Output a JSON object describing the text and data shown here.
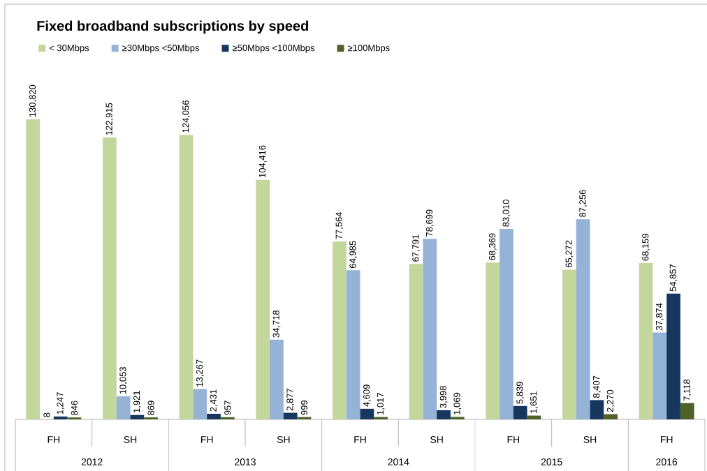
{
  "chart_data": {
    "type": "bar",
    "title": "Fixed broadband subscriptions by speed",
    "categories": [
      "FH",
      "SH",
      "FH",
      "SH",
      "FH",
      "SH",
      "FH",
      "SH",
      "FH"
    ],
    "series": [
      {
        "name": "< 30Mbps",
        "color": "#c3d69b",
        "values": [
          130820,
          122915,
          124056,
          104416,
          77564,
          67791,
          68369,
          65272,
          68159
        ],
        "value_labels": [
          "130,820",
          "122,915",
          "124,056",
          "104,416",
          "77,564",
          "67,791",
          "68,369",
          "65,272",
          "68,159"
        ]
      },
      {
        "name": "≥30Mbps <50Mbps",
        "color": "#95b3d7",
        "values": [
          8,
          10053,
          13267,
          34718,
          64985,
          78699,
          83010,
          87256,
          37874
        ],
        "value_labels": [
          "8",
          "10,053",
          "13,267",
          "34,718",
          "64,985",
          "78,699",
          "83,010",
          "87,256",
          "37,874"
        ]
      },
      {
        "name": "≥50Mbps <100Mbps",
        "color": "#17375e",
        "values": [
          1247,
          1921,
          2431,
          2877,
          4609,
          3998,
          5839,
          8407,
          54857
        ],
        "value_labels": [
          "1,247",
          "1,921",
          "2,431",
          "2,877",
          "4,609",
          "3,998",
          "5,839",
          "8,407",
          "54,857"
        ]
      },
      {
        "name": "≥100Mbps",
        "color": "#4f6228",
        "values": [
          846,
          869,
          957,
          999,
          1017,
          1069,
          1651,
          2270,
          7118
        ],
        "value_labels": [
          "846",
          "869",
          "957",
          "999",
          "1,017",
          "1,069",
          "1,651",
          "2,270",
          "7,118"
        ]
      }
    ],
    "tick_labels": "x",
    "legend": "top",
    "annotations": [
      "2012",
      "2013",
      "2014",
      "2015",
      "2016"
    ]
  }
}
